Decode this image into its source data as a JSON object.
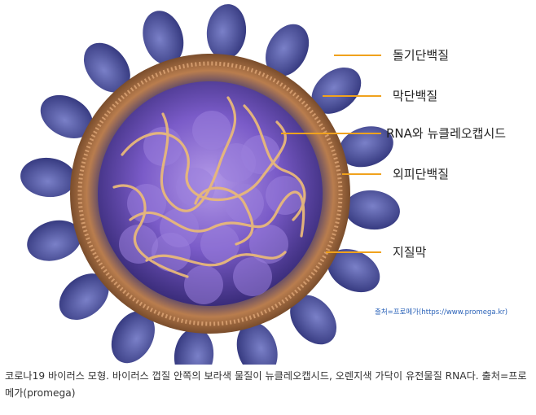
{
  "figure": {
    "labels": [
      {
        "text": "돌기단백질"
      },
      {
        "text": "막단백질"
      },
      {
        "text": "RNA와 뉴클레오캡시드"
      },
      {
        "text": "외피단백질"
      },
      {
        "text": "지질막"
      }
    ],
    "credit": "출처=프로메가(https://www.promega.kr)",
    "colors": {
      "leader": "#f0a21d",
      "spike": "#4a4ea0",
      "membrane": "#c8895a",
      "core": "#7a5bc8",
      "rna": "#e8b87a"
    }
  },
  "caption": "코로나19 바이러스 모형. 바이러스 껍질 안쪽의 보라색 물질이 뉴클레오캡시드, 오렌지색 가닥이 유전물질 RNA다. 출처=프로메가(promega)"
}
